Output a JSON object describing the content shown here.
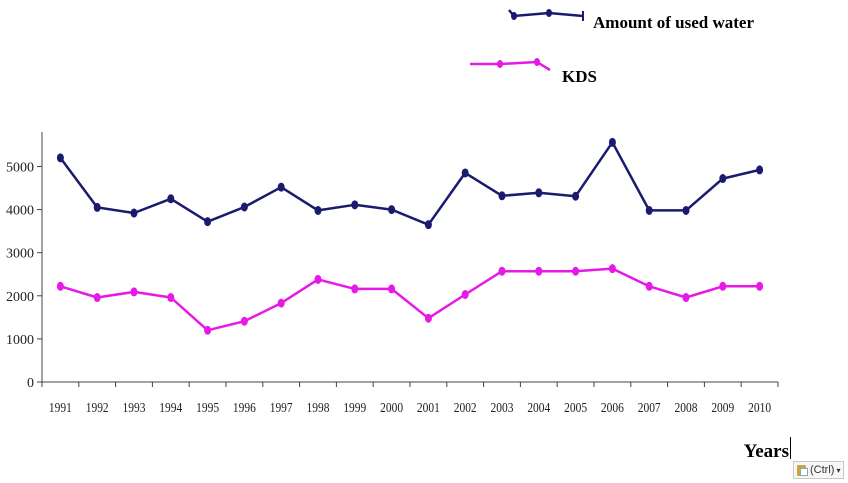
{
  "chart_data": {
    "type": "line",
    "title": "",
    "xlabel": "Years",
    "ylabel": "",
    "categories": [
      "1991",
      "1992",
      "1993",
      "1994",
      "1995",
      "1996",
      "1997",
      "1998",
      "1999",
      "2000",
      "2001",
      "2002",
      "2003",
      "2004",
      "2005",
      "2006",
      "2007",
      "2008",
      "2009",
      "2010"
    ],
    "ylim": [
      0,
      5800
    ],
    "yticks": [
      0,
      1000,
      2000,
      3000,
      4000,
      5000
    ],
    "grid": false,
    "legend": "top-right",
    "series": [
      {
        "name": "Amount of used water",
        "color": "#1a1a6e",
        "values": [
          5200,
          4050,
          3920,
          4250,
          3720,
          4060,
          4520,
          3980,
          4110,
          4000,
          3650,
          4850,
          4320,
          4390,
          4310,
          5560,
          3980,
          3980,
          4720,
          4920
        ]
      },
      {
        "name": "KDS",
        "color": "#e619e6",
        "values": [
          2220,
          1960,
          2090,
          1960,
          1200,
          1410,
          1830,
          2380,
          2160,
          2160,
          1480,
          2030,
          2570,
          2570,
          2570,
          2630,
          2220,
          1960,
          2220,
          2220
        ]
      }
    ]
  },
  "clipboard": {
    "label": "(Ctrl)",
    "icon": "clipboard-paste-icon"
  }
}
